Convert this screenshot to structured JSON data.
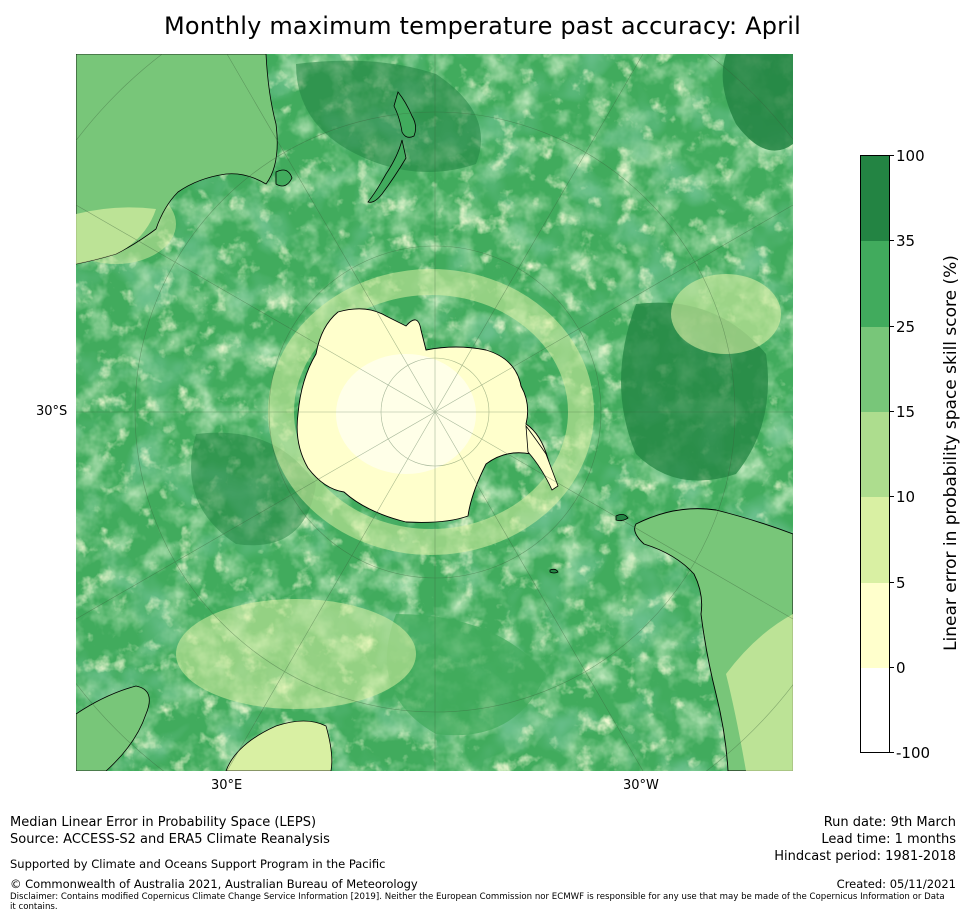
{
  "title": "Monthly maximum temperature past accuracy: April",
  "map": {
    "projection": "south-polar-stereographic",
    "lat_label": "30°S",
    "lon_labels": [
      "30°E",
      "30°W"
    ]
  },
  "colorbar": {
    "label": "Linear error in probability space skill score (%)",
    "ticks": [
      "100",
      "35",
      "25",
      "15",
      "10",
      "5",
      "0",
      "-100"
    ],
    "bins": [
      {
        "range": "35 to 100",
        "color": "#238443"
      },
      {
        "range": "25 to 35",
        "color": "#41ab5d"
      },
      {
        "range": "15 to 25",
        "color": "#78c679"
      },
      {
        "range": "10 to 15",
        "color": "#addd8e"
      },
      {
        "range": "5 to 10",
        "color": "#d9f0a3"
      },
      {
        "range": "0 to 5",
        "color": "#ffffcc"
      },
      {
        "range": "-100 to 0",
        "color": "#ffffff"
      }
    ]
  },
  "footer": {
    "left_line1": "Median Linear Error in Probability Space (LEPS)",
    "left_line2": "Source: ACCESS-S2 and ERA5 Climate Reanalysis",
    "right_line1": "Run date: 9th March",
    "right_line2": "Lead time: 1 months",
    "right_line3": "Hindcast period: 1981-2018",
    "supported": "Supported by Climate and Oceans Support Program in the Pacific",
    "copyright": "© Commonwealth of Australia 2021, Australian Bureau of Meteorology",
    "created": "Created: 05/11/2021",
    "disclaimer": "Disclaimer: Contains modified Copernicus Climate Change Service Information [2019]. Neither the European Commission nor ECMWF is responsible for any use that may be made of the Copernicus Information or Data it contains."
  }
}
